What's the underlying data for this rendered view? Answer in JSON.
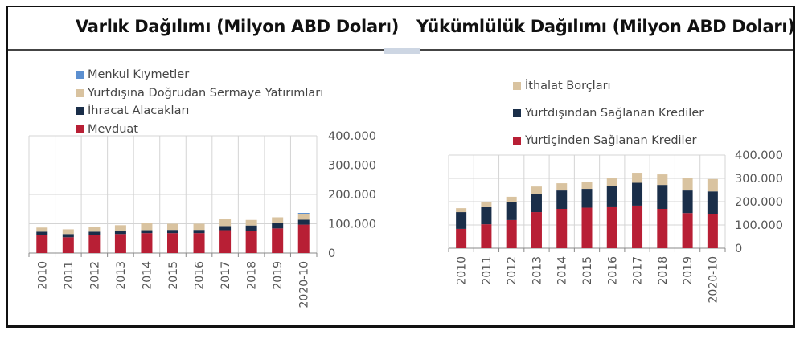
{
  "titles": {
    "left": "Varlık Dağılımı (Milyon ABD Doları)",
    "right": "Yükümlülük  Dağılımı  (Milyon  ABD Doları)"
  },
  "colors": {
    "menkul": "#5b8fd0",
    "fdi": "#d9c3a0",
    "navy": "#1a2e49",
    "red": "#b81f35",
    "grid": "#d4d4d4",
    "axis": "#888888"
  },
  "legend": {
    "left": [
      {
        "label": "Menkul Kıymetler",
        "color": "#5b8fd0"
      },
      {
        "label": "Yurtdışına Doğrudan Sermaye Yatırımları",
        "color": "#d9c3a0"
      },
      {
        "label": "İhracat Alacakları",
        "color": "#1a2e49"
      },
      {
        "label": "Mevduat",
        "color": "#b81f35"
      }
    ],
    "right": [
      {
        "label": "İthalat Borçları",
        "color": "#d9c3a0"
      },
      {
        "label": "Yurtdışından Sağlanan Krediler",
        "color": "#1a2e49"
      },
      {
        "label": "Yurtiçinden Sağlanan Krediler",
        "color": "#b81f35"
      }
    ]
  },
  "chart_data": [
    {
      "type": "bar",
      "stacked": true,
      "title": "Varlık Dağılımı (Milyon ABD Doları)",
      "xlabel": "",
      "ylabel": "",
      "ylim": [
        0,
        400000
      ],
      "yticks": [
        "0",
        "100.000",
        "200.000",
        "300.000",
        "400.000"
      ],
      "y_axis_position": "right",
      "grid": true,
      "legend_position": "top-left",
      "categories": [
        "2010",
        "2011",
        "2012",
        "2013",
        "2014",
        "2015",
        "2016",
        "2017",
        "2018",
        "2019",
        "2020-10"
      ],
      "series": [
        {
          "name": "Mevduat",
          "color": "#b81f35",
          "values": [
            62000,
            54000,
            62000,
            65000,
            68000,
            68000,
            68000,
            78000,
            76000,
            84000,
            97000
          ]
        },
        {
          "name": "İhracat Alacakları",
          "color": "#1a2e49",
          "values": [
            11000,
            11000,
            11000,
            11000,
            10000,
            11000,
            11000,
            14000,
            18000,
            19000,
            17000
          ]
        },
        {
          "name": "Yurtdışına Doğrudan Sermaye Yatırımları",
          "color": "#d9c3a0",
          "values": [
            14000,
            16000,
            16000,
            19000,
            25000,
            21000,
            21000,
            24000,
            19000,
            19000,
            18000
          ]
        },
        {
          "name": "Menkul Kıymetler",
          "color": "#5b8fd0",
          "values": [
            0,
            0,
            0,
            0,
            0,
            0,
            0,
            0,
            0,
            0,
            5000
          ]
        }
      ]
    },
    {
      "type": "bar",
      "stacked": true,
      "title": "Yükümlülük Dağılımı (Milyon ABD Doları)",
      "xlabel": "",
      "ylabel": "",
      "ylim": [
        0,
        400000
      ],
      "yticks": [
        "0",
        "100.000",
        "200.000",
        "300.000",
        "400.000"
      ],
      "y_axis_position": "right",
      "grid": true,
      "legend_position": "top",
      "categories": [
        "2010",
        "2011",
        "2012",
        "2013",
        "2014",
        "2015",
        "2016",
        "2017",
        "2018",
        "2019",
        "2020-10"
      ],
      "series": [
        {
          "name": "Yurtiçinden Sağlanan Krediler",
          "color": "#b81f35",
          "values": [
            83000,
            103000,
            121000,
            155000,
            169000,
            174000,
            176000,
            183000,
            169000,
            151000,
            146000
          ]
        },
        {
          "name": "Yurtdışından Sağlanan Krediler",
          "color": "#1a2e49",
          "values": [
            72000,
            73000,
            79000,
            79000,
            79000,
            81000,
            91000,
            98000,
            103000,
            97000,
            98000
          ]
        },
        {
          "name": "İthalat Borçları",
          "color": "#d9c3a0",
          "values": [
            17000,
            24000,
            21000,
            31000,
            31000,
            31000,
            33000,
            43000,
            45000,
            52000,
            53000
          ]
        }
      ]
    }
  ]
}
